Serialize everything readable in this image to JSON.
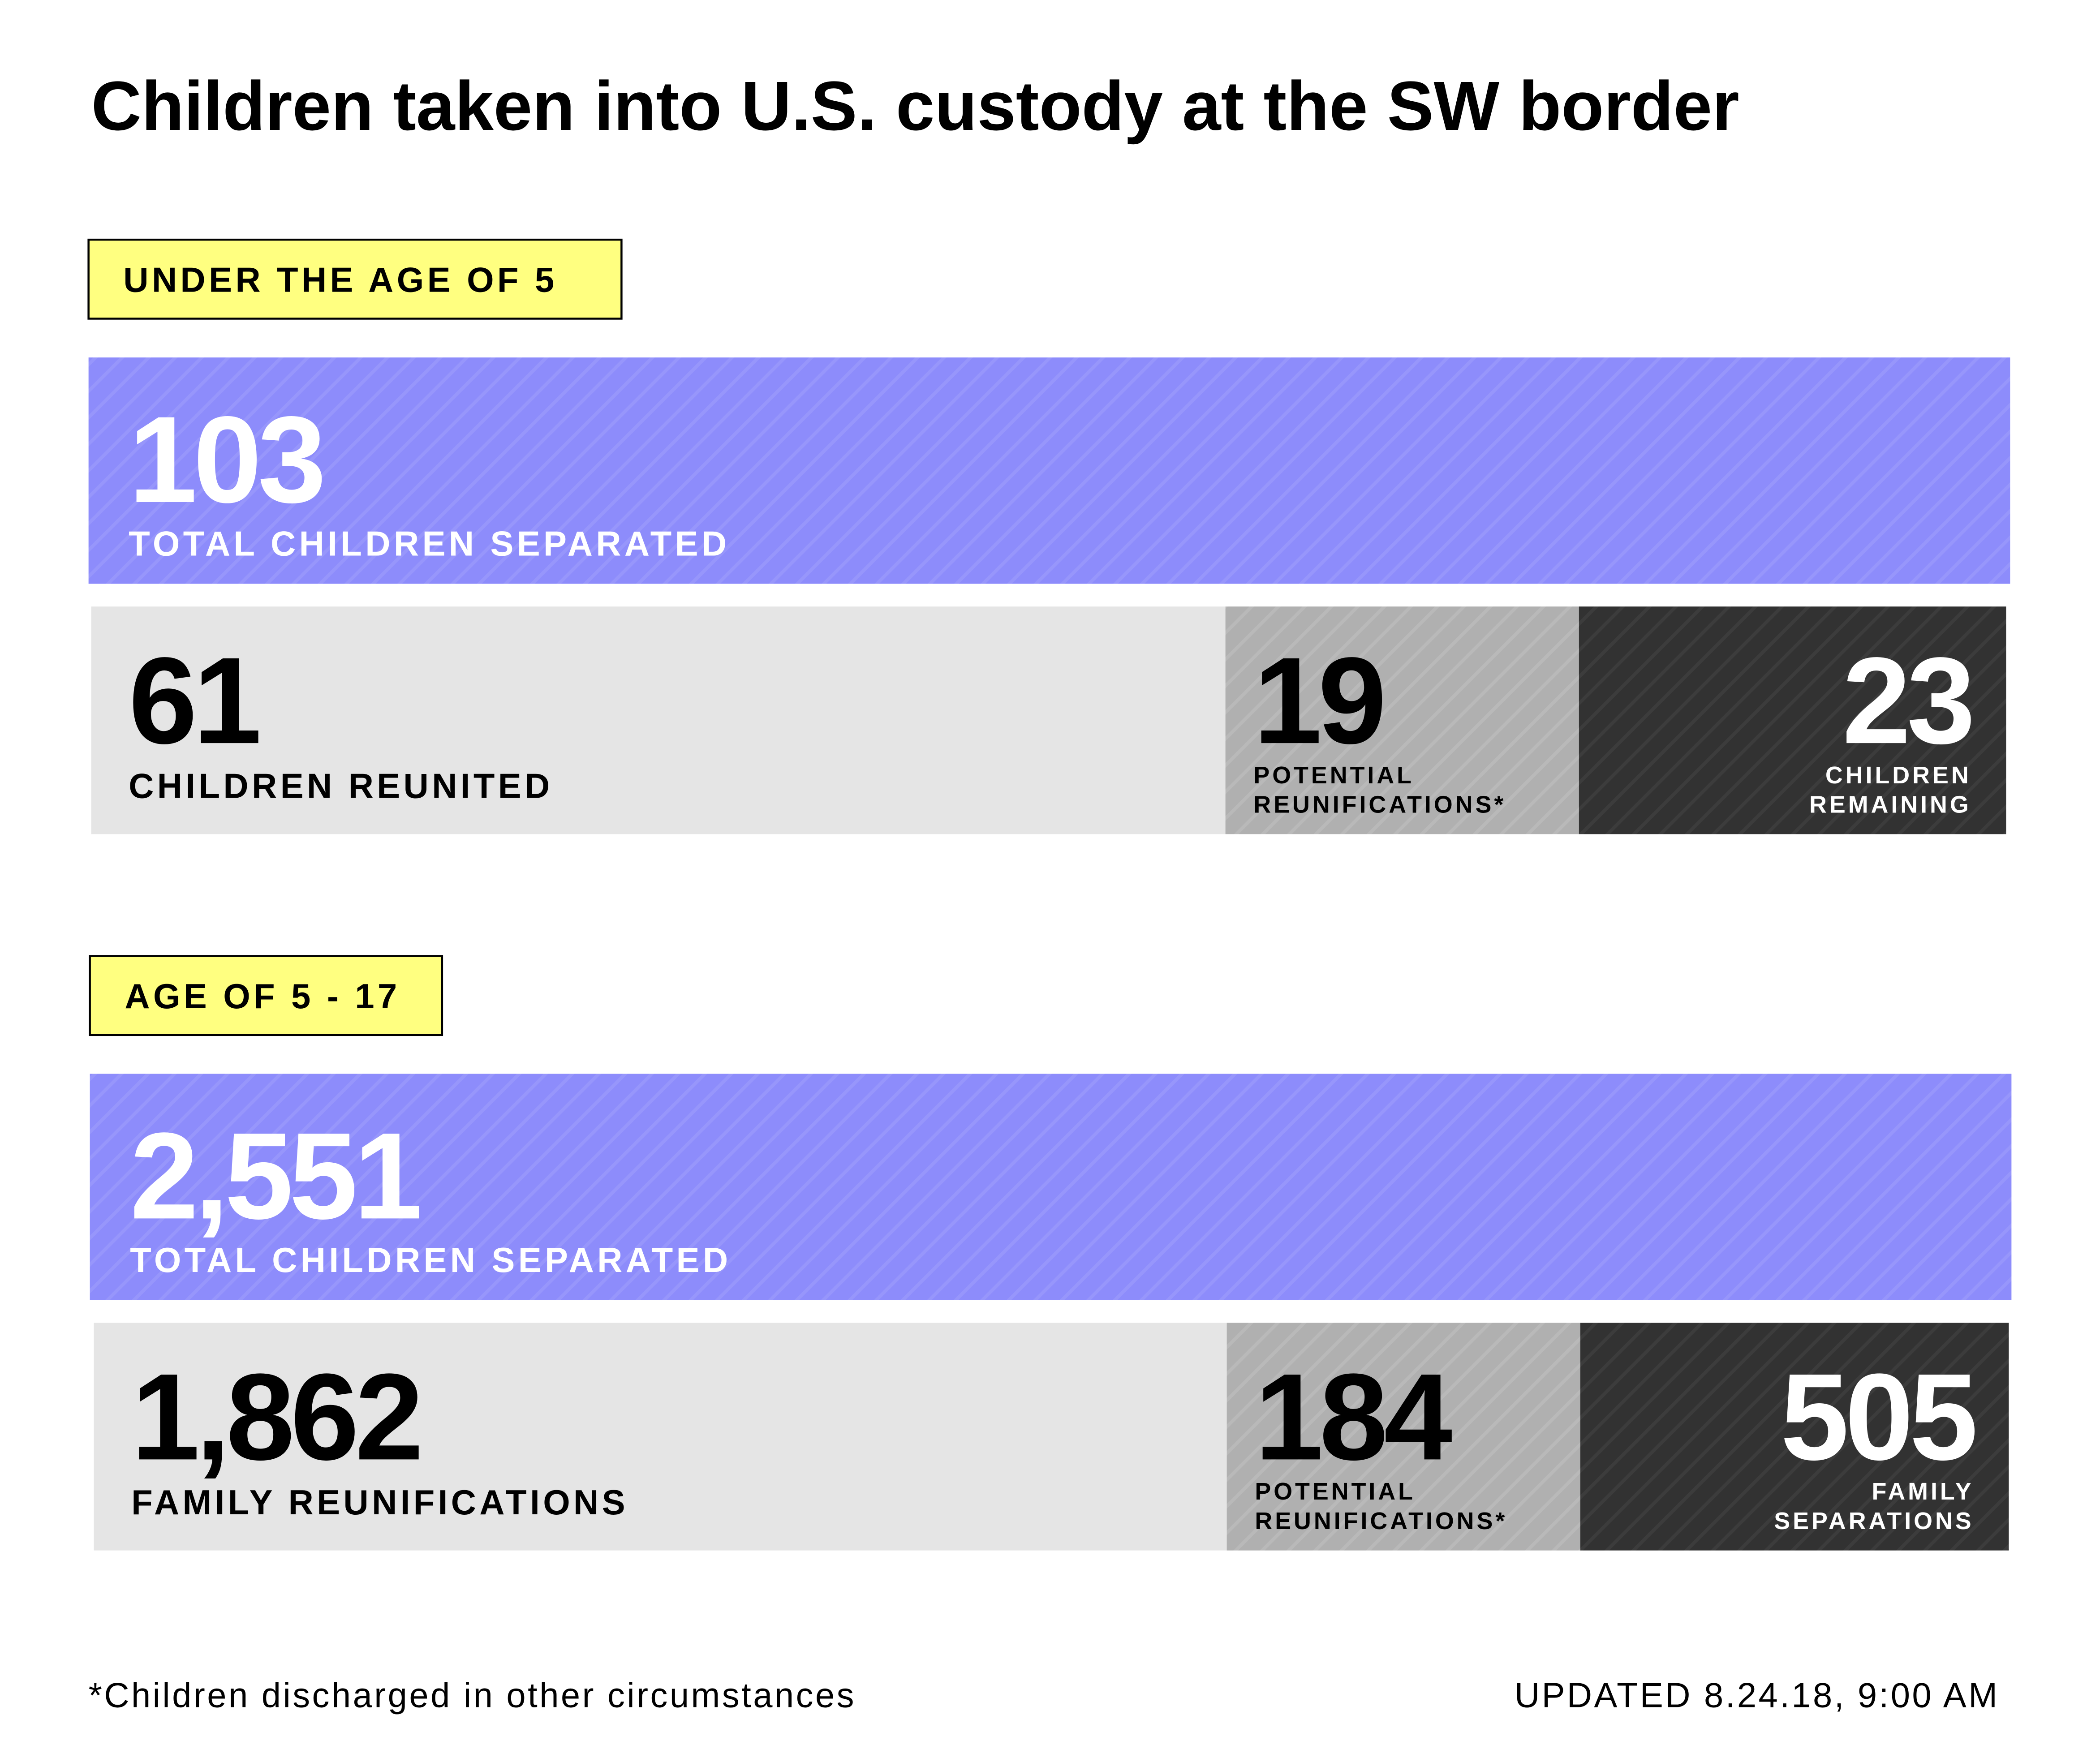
{
  "title": "Children taken into U.S. custody at the SW border",
  "sections": [
    {
      "label": "UNDER THE AGE OF 5",
      "total": {
        "value": "103",
        "label": "TOTAL CHILDREN SEPARATED"
      },
      "segments": [
        {
          "value": "61",
          "label": [
            "CHILDREN REUNITED"
          ]
        },
        {
          "value": "19",
          "label": [
            "POTENTIAL",
            "REUNIFICATIONS*"
          ]
        },
        {
          "value": "23",
          "label": [
            "CHILDREN",
            "REMAINING"
          ]
        }
      ]
    },
    {
      "label": "AGE OF 5 - 17",
      "total": {
        "value": "2,551",
        "label": "TOTAL CHILDREN SEPARATED"
      },
      "segments": [
        {
          "value": "1,862",
          "label": [
            "FAMILY REUNIFICATIONS"
          ]
        },
        {
          "value": "184",
          "label": [
            "POTENTIAL",
            "REUNIFICATIONS*"
          ]
        },
        {
          "value": "505",
          "label": [
            "FAMILY",
            "SEPARATIONS"
          ]
        }
      ]
    }
  ],
  "footnote": "*Children discharged in other circumstances",
  "updated": "UPDATED 8.24.18, 9:00 AM"
}
